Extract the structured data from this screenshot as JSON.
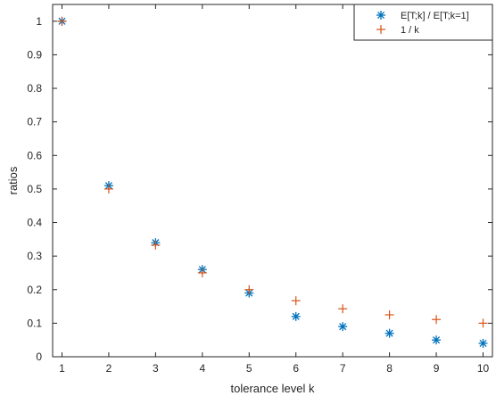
{
  "chart_data": {
    "type": "scatter",
    "title": "",
    "xlabel": "tolerance level k",
    "ylabel": "ratios",
    "xlim": [
      0.8,
      10.2
    ],
    "ylim": [
      0,
      1.05
    ],
    "x_ticks": [
      1,
      2,
      3,
      4,
      5,
      6,
      7,
      8,
      9,
      10
    ],
    "y_ticks": [
      0,
      0.1,
      0.2,
      0.3,
      0.4,
      0.5,
      0.6,
      0.7,
      0.8,
      0.9,
      1
    ],
    "grid": false,
    "legend_position": "top-right",
    "series": [
      {
        "name": "E[T;k] / E[T;k=1]",
        "marker": "asterisk",
        "color": "#0072BD",
        "x": [
          1,
          2,
          3,
          4,
          5,
          6,
          7,
          8,
          9,
          10
        ],
        "y": [
          1.0,
          0.51,
          0.34,
          0.26,
          0.19,
          0.12,
          0.09,
          0.07,
          0.05,
          0.04
        ]
      },
      {
        "name": "1 / k",
        "marker": "plus",
        "color": "#D95319",
        "x": [
          1,
          2,
          3,
          4,
          5,
          6,
          7,
          8,
          9,
          10
        ],
        "y": [
          1.0,
          0.5,
          0.333,
          0.25,
          0.2,
          0.167,
          0.143,
          0.125,
          0.111,
          0.1
        ]
      }
    ]
  }
}
